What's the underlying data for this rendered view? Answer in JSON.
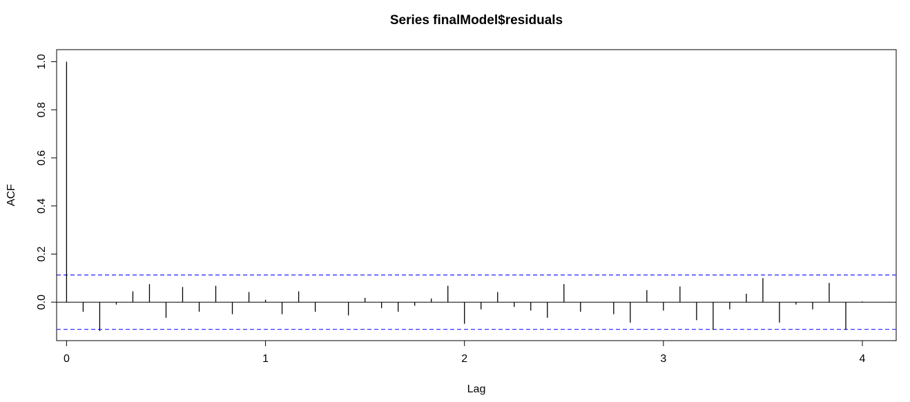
{
  "chart_data": {
    "type": "bar",
    "title": "Series  finalModel$residuals",
    "xlabel": "Lag",
    "ylabel": "ACF",
    "xlim": [
      -0.05,
      4.17
    ],
    "ylim": [
      -0.16,
      1.05
    ],
    "xticks": [
      "0",
      "1",
      "2",
      "3",
      "4"
    ],
    "yticks": [
      "0.0",
      "0.2",
      "0.4",
      "0.6",
      "0.8",
      "1.0"
    ],
    "confidence_bound": 0.113,
    "confidence_color": "#3333ff",
    "bar_color": "#000000",
    "lags": [
      0,
      0.0833,
      0.1667,
      0.25,
      0.3333,
      0.4167,
      0.5,
      0.5833,
      0.6667,
      0.75,
      0.8333,
      0.9167,
      1.0,
      1.0833,
      1.1667,
      1.25,
      1.3333,
      1.4167,
      1.5,
      1.5833,
      1.6667,
      1.75,
      1.8333,
      1.9167,
      2.0,
      2.0833,
      2.1667,
      2.25,
      2.3333,
      2.4167,
      2.5,
      2.5833,
      2.6667,
      2.75,
      2.8333,
      2.9167,
      3.0,
      3.0833,
      3.1667,
      3.25,
      3.3333,
      3.4167,
      3.5,
      3.5833,
      3.6667,
      3.75,
      3.8333,
      3.9167,
      4.0
    ],
    "acf": [
      1.0,
      -0.04,
      -0.12,
      -0.01,
      0.045,
      0.075,
      -0.065,
      0.063,
      -0.04,
      0.068,
      -0.05,
      0.042,
      0.01,
      -0.05,
      0.045,
      -0.04,
      0.0,
      -0.055,
      0.018,
      -0.025,
      -0.04,
      -0.015,
      0.015,
      0.068,
      -0.09,
      -0.03,
      0.042,
      -0.02,
      -0.035,
      -0.065,
      0.075,
      -0.04,
      0.0,
      -0.05,
      -0.085,
      0.05,
      -0.035,
      0.065,
      -0.075,
      -0.115,
      -0.03,
      0.035,
      0.1,
      -0.085,
      -0.01,
      -0.03,
      0.08,
      -0.115,
      0.003
    ]
  }
}
